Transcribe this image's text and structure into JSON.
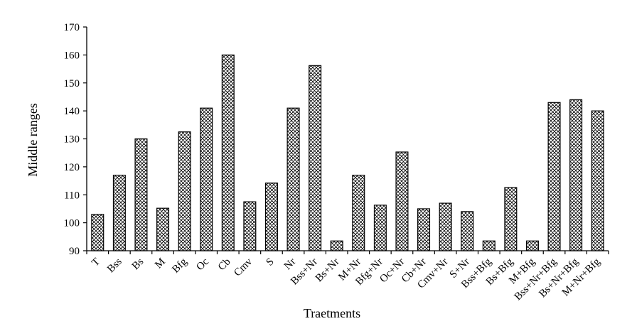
{
  "chart_data": {
    "type": "bar",
    "title": "",
    "xlabel": "Traetments",
    "ylabel": "Middle ranges",
    "ylim": [
      90,
      170
    ],
    "yticks": [
      90,
      100,
      110,
      120,
      130,
      140,
      150,
      160,
      170
    ],
    "grid": false,
    "legend": "none",
    "bar_pattern": "crosshatch",
    "categories": [
      "T",
      "Bss",
      "Bs",
      "M",
      "Bfg",
      "Oc",
      "Cb",
      "Cmv",
      "S",
      "Nr",
      "Bss+Nr",
      "Bs+Nr",
      "M+Nr",
      "Bfg+Nr",
      "Oc+Nr",
      "Cb+Nr",
      "Cmv+Nr",
      "S+Nr",
      "Bss+Bfg",
      "Bs+Bfg",
      "M+Bfg",
      "Bss+Nr+Bfg",
      "Bs+Nr+Bfg",
      "M+Nr+Bfg"
    ],
    "values": [
      103,
      117,
      130,
      105.2,
      132.5,
      141,
      160,
      107.5,
      114.2,
      141,
      156.2,
      93.5,
      117,
      106.3,
      125.3,
      105,
      107,
      104,
      93.5,
      112.6,
      93.5,
      143,
      144,
      140
    ]
  }
}
